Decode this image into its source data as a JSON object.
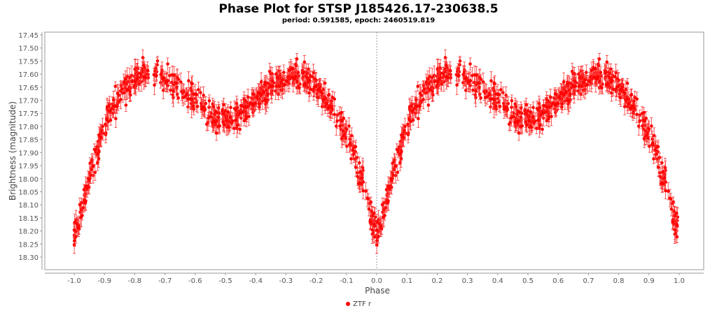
{
  "chart_data": {
    "type": "scatter",
    "title": "Phase Plot for STSP J185426.17-230638.5",
    "subtitle": "period: 0.591585, epoch: 2460519.819",
    "xlabel": "Phase",
    "ylabel": "Brightness (magnitude)",
    "xlim": [
      -1.08,
      1.08
    ],
    "ylim": [
      17.44,
      18.33
    ],
    "y_inverted": true,
    "xticks": [
      "-1.0",
      "-0.9",
      "-0.8",
      "-0.7",
      "-0.6",
      "-0.5",
      "-0.4",
      "-0.3",
      "-0.2",
      "-0.1",
      "0.0",
      "0.1",
      "0.2",
      "0.3",
      "0.4",
      "0.5",
      "0.6",
      "0.7",
      "0.8",
      "0.9",
      "1.0"
    ],
    "yticks": [
      "17.45",
      "17.50",
      "17.55",
      "17.60",
      "17.65",
      "17.70",
      "17.75",
      "17.80",
      "17.85",
      "17.90",
      "17.95",
      "18.00",
      "18.05",
      "18.10",
      "18.15",
      "18.20",
      "18.25",
      "18.30"
    ],
    "legend": [
      {
        "name": "ZTF r",
        "color": "#ff0000"
      }
    ],
    "legend_position": "bottom",
    "note_phase_folding": "points shown at phase and phase-1",
    "curve_phase": [
      0.0,
      0.02,
      0.05,
      0.08,
      0.1,
      0.13,
      0.15,
      0.18,
      0.2,
      0.23,
      0.26,
      0.3,
      0.35,
      0.4,
      0.45,
      0.5,
      0.55,
      0.6,
      0.65,
      0.7,
      0.75,
      0.8,
      0.85,
      0.88,
      0.9,
      0.93,
      0.95,
      0.97,
      1.0
    ],
    "curve_mag": [
      18.22,
      18.14,
      18.0,
      17.88,
      17.8,
      17.72,
      17.68,
      17.64,
      17.62,
      17.6,
      17.6,
      17.62,
      17.65,
      17.7,
      17.76,
      17.78,
      17.75,
      17.7,
      17.65,
      17.62,
      17.6,
      17.64,
      17.72,
      17.78,
      17.82,
      17.92,
      18.0,
      18.1,
      18.22
    ],
    "mag_error": 0.025
  }
}
